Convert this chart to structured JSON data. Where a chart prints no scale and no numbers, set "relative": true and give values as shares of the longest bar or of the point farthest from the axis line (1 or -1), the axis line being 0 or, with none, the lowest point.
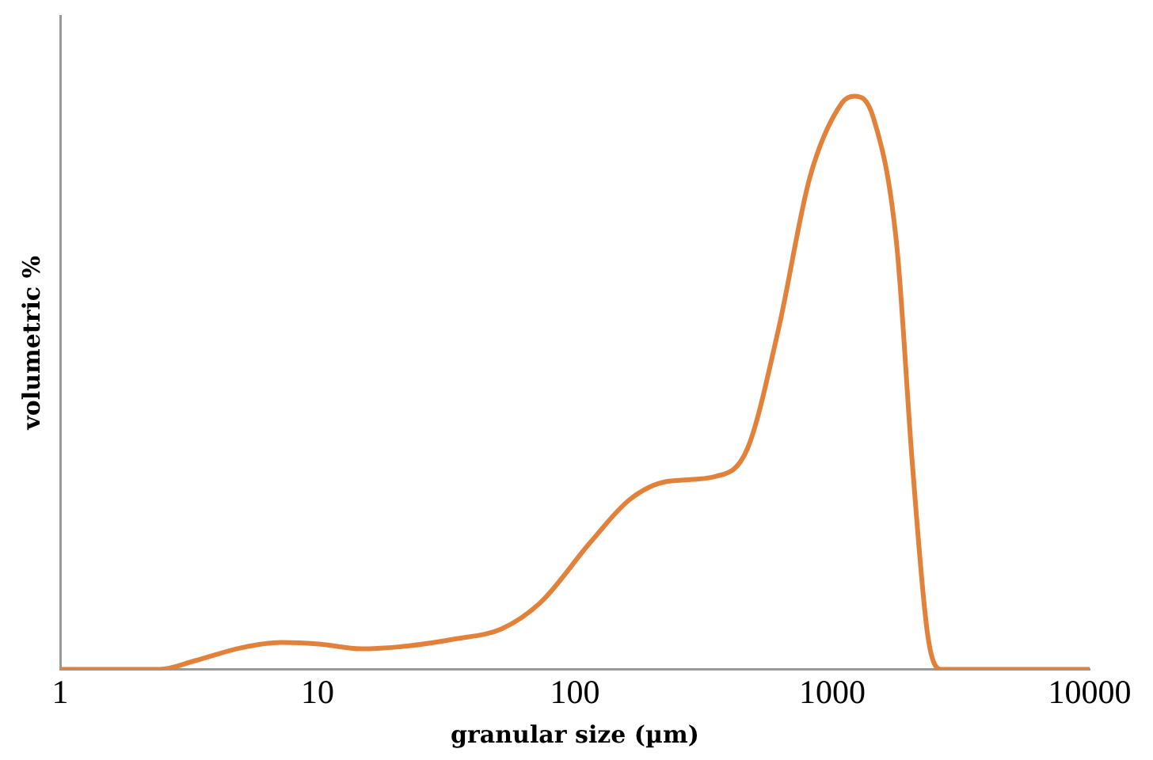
{
  "chart_data": {
    "type": "line",
    "xlabel": "granular size (µm)",
    "ylabel": "volumetric %",
    "log": "x",
    "relative": true,
    "xlim": [
      1,
      10000
    ],
    "xticks": [
      1,
      10,
      100,
      1000,
      10000
    ],
    "grid": false,
    "legend": false,
    "marker": "none",
    "line_style": "solid",
    "series": [
      {
        "color": "#e2823a",
        "x": [
          1,
          2.44,
          3.33,
          5.08,
          7.22,
          10.3,
          14.7,
          22.4,
          34,
          52,
          74,
          115,
          163,
          229,
          354,
          468,
          617,
          818,
          1090,
          1220,
          1445,
          1780,
          2050,
          2350,
          2640,
          2930,
          10000
        ],
        "values": [
          0,
          0,
          0.015,
          0.038,
          0.047,
          0.044,
          0.036,
          0.041,
          0.053,
          0.071,
          0.118,
          0.222,
          0.296,
          0.328,
          0.337,
          0.385,
          0.592,
          0.858,
          0.988,
          1,
          0.962,
          0.74,
          0.355,
          0.059,
          0,
          0,
          0
        ]
      }
    ]
  }
}
